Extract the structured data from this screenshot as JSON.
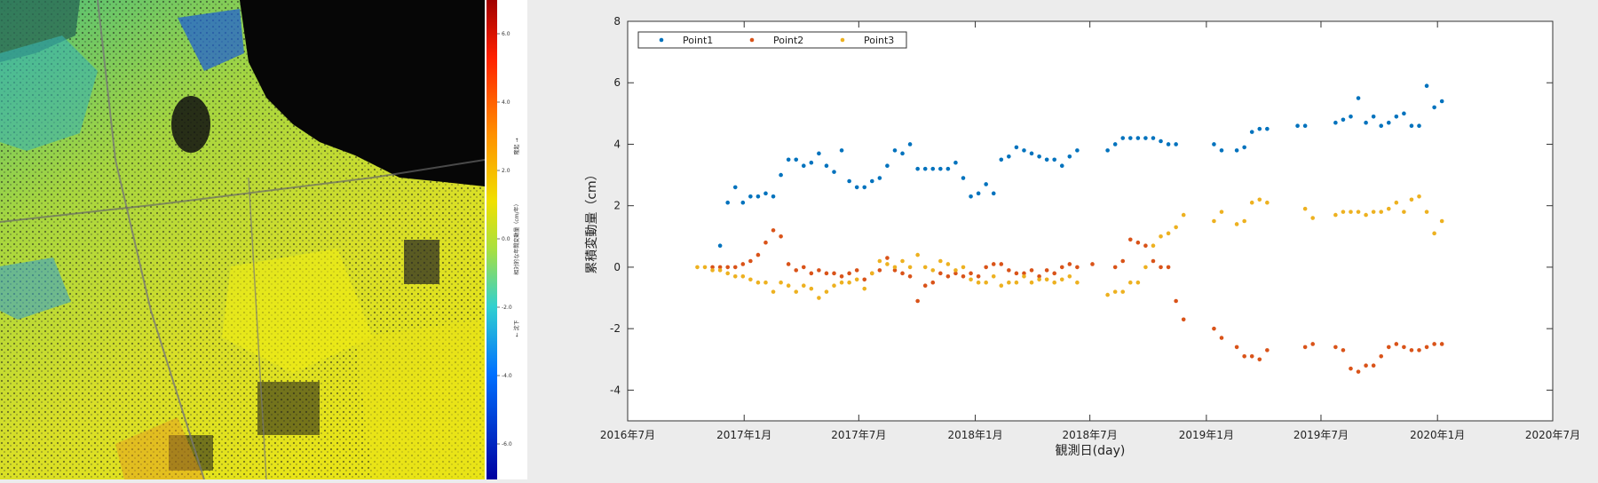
{
  "map": {
    "colorbar": {
      "ticks": [
        "6.0",
        "4.0",
        "2.0",
        "0.0",
        "-2.0",
        "-4.0",
        "-6.0"
      ],
      "title": "相対的な年間変動量（cm/年）",
      "label_up": "隆起 →",
      "label_down": "← 沈下",
      "colors": [
        "#c00000",
        "#ff3000",
        "#ff9000",
        "#f0e000",
        "#a0e040",
        "#30d0d0",
        "#0080ff",
        "#0000c0"
      ]
    }
  },
  "chart_data": {
    "type": "scatter",
    "xlabel": "観測日(day)",
    "ylabel": "累積変動量（cm）",
    "ylim": [
      -5,
      8
    ],
    "yticks": [
      "-4",
      "-2",
      "0",
      "2",
      "4",
      "6",
      "8"
    ],
    "xticks": [
      "2016年7月",
      "2017年1月",
      "2017年7月",
      "2018年1月",
      "2018年7月",
      "2019年1月",
      "2019年7月",
      "2020年1月",
      "2020年7月"
    ],
    "xlim": [
      "2016-07-01",
      "2020-07-01"
    ],
    "legend": "top-left",
    "grid": false,
    "series": [
      {
        "name": "Point1",
        "color": "#0072bd",
        "points": [
          [
            "2016-11-24",
            0.7
          ],
          [
            "2016-12-06",
            2.1
          ],
          [
            "2016-12-18",
            2.6
          ],
          [
            "2016-12-30",
            2.1
          ],
          [
            "2017-01-11",
            2.3
          ],
          [
            "2017-01-23",
            2.3
          ],
          [
            "2017-02-04",
            2.4
          ],
          [
            "2017-02-16",
            2.3
          ],
          [
            "2017-02-28",
            3.0
          ],
          [
            "2017-03-12",
            3.5
          ],
          [
            "2017-03-24",
            3.5
          ],
          [
            "2017-04-05",
            3.3
          ],
          [
            "2017-04-17",
            3.4
          ],
          [
            "2017-04-29",
            3.7
          ],
          [
            "2017-05-11",
            3.3
          ],
          [
            "2017-05-23",
            3.1
          ],
          [
            "2017-06-04",
            3.8
          ],
          [
            "2017-06-16",
            2.8
          ],
          [
            "2017-06-28",
            2.6
          ],
          [
            "2017-07-10",
            2.6
          ],
          [
            "2017-07-22",
            2.8
          ],
          [
            "2017-08-03",
            2.9
          ],
          [
            "2017-08-15",
            3.3
          ],
          [
            "2017-08-27",
            3.8
          ],
          [
            "2017-09-08",
            3.7
          ],
          [
            "2017-09-20",
            4.0
          ],
          [
            "2017-10-02",
            3.2
          ],
          [
            "2017-10-14",
            3.2
          ],
          [
            "2017-10-26",
            3.2
          ],
          [
            "2017-11-07",
            3.2
          ],
          [
            "2017-11-19",
            3.2
          ],
          [
            "2017-12-01",
            3.4
          ],
          [
            "2017-12-13",
            2.9
          ],
          [
            "2017-12-25",
            2.3
          ],
          [
            "2018-01-06",
            2.4
          ],
          [
            "2018-01-18",
            2.7
          ],
          [
            "2018-01-30",
            2.4
          ],
          [
            "2018-02-11",
            3.5
          ],
          [
            "2018-02-23",
            3.6
          ],
          [
            "2018-03-07",
            3.9
          ],
          [
            "2018-03-19",
            3.8
          ],
          [
            "2018-03-31",
            3.7
          ],
          [
            "2018-04-12",
            3.6
          ],
          [
            "2018-04-24",
            3.5
          ],
          [
            "2018-05-06",
            3.5
          ],
          [
            "2018-05-18",
            3.3
          ],
          [
            "2018-05-30",
            3.6
          ],
          [
            "2018-06-11",
            3.8
          ],
          [
            "2018-07-29",
            3.8
          ],
          [
            "2018-08-10",
            4.0
          ],
          [
            "2018-08-22",
            4.2
          ],
          [
            "2018-09-03",
            4.2
          ],
          [
            "2018-09-15",
            4.2
          ],
          [
            "2018-09-27",
            4.2
          ],
          [
            "2018-10-09",
            4.2
          ],
          [
            "2018-10-21",
            4.1
          ],
          [
            "2018-11-02",
            4.0
          ],
          [
            "2018-11-14",
            4.0
          ],
          [
            "2019-01-13",
            4.0
          ],
          [
            "2019-01-25",
            3.8
          ],
          [
            "2019-02-18",
            3.8
          ],
          [
            "2019-03-02",
            3.9
          ],
          [
            "2019-03-14",
            4.4
          ],
          [
            "2019-03-26",
            4.5
          ],
          [
            "2019-04-07",
            4.5
          ],
          [
            "2019-05-25",
            4.6
          ],
          [
            "2019-06-06",
            4.6
          ],
          [
            "2019-07-24",
            4.7
          ],
          [
            "2019-08-05",
            4.8
          ],
          [
            "2019-08-17",
            4.9
          ],
          [
            "2019-08-29",
            5.5
          ],
          [
            "2019-09-10",
            4.7
          ],
          [
            "2019-09-22",
            4.9
          ],
          [
            "2019-10-04",
            4.6
          ],
          [
            "2019-10-16",
            4.7
          ],
          [
            "2019-10-28",
            4.9
          ],
          [
            "2019-11-09",
            5.0
          ],
          [
            "2019-11-21",
            4.6
          ],
          [
            "2019-12-03",
            4.6
          ],
          [
            "2019-12-15",
            5.9
          ],
          [
            "2019-12-27",
            5.2
          ],
          [
            "2020-01-08",
            5.4
          ]
        ]
      },
      {
        "name": "Point2",
        "color": "#d95319",
        "points": [
          [
            "2016-11-12",
            0.0
          ],
          [
            "2016-11-24",
            0.0
          ],
          [
            "2016-12-06",
            0.0
          ],
          [
            "2016-12-18",
            0.0
          ],
          [
            "2016-12-30",
            0.1
          ],
          [
            "2017-01-11",
            0.2
          ],
          [
            "2017-01-23",
            0.4
          ],
          [
            "2017-02-04",
            0.8
          ],
          [
            "2017-02-16",
            1.2
          ],
          [
            "2017-02-28",
            1.0
          ],
          [
            "2017-03-12",
            0.1
          ],
          [
            "2017-03-24",
            -0.1
          ],
          [
            "2017-04-05",
            0.0
          ],
          [
            "2017-04-17",
            -0.2
          ],
          [
            "2017-04-29",
            -0.1
          ],
          [
            "2017-05-11",
            -0.2
          ],
          [
            "2017-05-23",
            -0.2
          ],
          [
            "2017-06-04",
            -0.3
          ],
          [
            "2017-06-16",
            -0.2
          ],
          [
            "2017-06-28",
            -0.1
          ],
          [
            "2017-07-10",
            -0.4
          ],
          [
            "2017-07-22",
            -0.2
          ],
          [
            "2017-08-03",
            -0.1
          ],
          [
            "2017-08-15",
            0.3
          ],
          [
            "2017-08-27",
            -0.1
          ],
          [
            "2017-09-08",
            -0.2
          ],
          [
            "2017-09-20",
            -0.3
          ],
          [
            "2017-10-02",
            -1.1
          ],
          [
            "2017-10-14",
            -0.6
          ],
          [
            "2017-10-26",
            -0.5
          ],
          [
            "2017-11-07",
            -0.2
          ],
          [
            "2017-11-19",
            -0.3
          ],
          [
            "2017-12-01",
            -0.2
          ],
          [
            "2017-12-13",
            -0.3
          ],
          [
            "2017-12-25",
            -0.2
          ],
          [
            "2018-01-06",
            -0.3
          ],
          [
            "2018-01-18",
            0.0
          ],
          [
            "2018-01-30",
            0.1
          ],
          [
            "2018-02-11",
            0.1
          ],
          [
            "2018-02-23",
            -0.1
          ],
          [
            "2018-03-07",
            -0.2
          ],
          [
            "2018-03-19",
            -0.2
          ],
          [
            "2018-03-31",
            -0.1
          ],
          [
            "2018-04-12",
            -0.3
          ],
          [
            "2018-04-24",
            -0.1
          ],
          [
            "2018-05-06",
            -0.2
          ],
          [
            "2018-05-18",
            0.0
          ],
          [
            "2018-05-30",
            0.1
          ],
          [
            "2018-06-11",
            0.0
          ],
          [
            "2018-07-05",
            0.1
          ],
          [
            "2018-08-10",
            0.0
          ],
          [
            "2018-08-22",
            0.2
          ],
          [
            "2018-09-03",
            0.9
          ],
          [
            "2018-09-15",
            0.8
          ],
          [
            "2018-09-27",
            0.7
          ],
          [
            "2018-10-09",
            0.2
          ],
          [
            "2018-10-21",
            0.0
          ],
          [
            "2018-11-02",
            0.0
          ],
          [
            "2018-11-14",
            -1.1
          ],
          [
            "2018-11-26",
            -1.7
          ],
          [
            "2019-01-13",
            -2.0
          ],
          [
            "2019-01-25",
            -2.3
          ],
          [
            "2019-02-18",
            -2.6
          ],
          [
            "2019-03-02",
            -2.9
          ],
          [
            "2019-03-14",
            -2.9
          ],
          [
            "2019-03-26",
            -3.0
          ],
          [
            "2019-04-07",
            -2.7
          ],
          [
            "2019-06-06",
            -2.6
          ],
          [
            "2019-06-18",
            -2.5
          ],
          [
            "2019-07-24",
            -2.6
          ],
          [
            "2019-08-05",
            -2.7
          ],
          [
            "2019-08-17",
            -3.3
          ],
          [
            "2019-08-29",
            -3.4
          ],
          [
            "2019-09-10",
            -3.2
          ],
          [
            "2019-09-22",
            -3.2
          ],
          [
            "2019-10-04",
            -2.9
          ],
          [
            "2019-10-16",
            -2.6
          ],
          [
            "2019-10-28",
            -2.5
          ],
          [
            "2019-11-09",
            -2.6
          ],
          [
            "2019-11-21",
            -2.7
          ],
          [
            "2019-12-03",
            -2.7
          ],
          [
            "2019-12-15",
            -2.6
          ],
          [
            "2019-12-27",
            -2.5
          ],
          [
            "2020-01-08",
            -2.5
          ]
        ]
      },
      {
        "name": "Point3",
        "color": "#edb120",
        "points": [
          [
            "2016-10-19",
            0.0
          ],
          [
            "2016-10-31",
            0.0
          ],
          [
            "2016-11-12",
            -0.1
          ],
          [
            "2016-11-24",
            -0.1
          ],
          [
            "2016-12-06",
            -0.2
          ],
          [
            "2016-12-18",
            -0.3
          ],
          [
            "2016-12-30",
            -0.3
          ],
          [
            "2017-01-11",
            -0.4
          ],
          [
            "2017-01-23",
            -0.5
          ],
          [
            "2017-02-04",
            -0.5
          ],
          [
            "2017-02-16",
            -0.8
          ],
          [
            "2017-02-28",
            -0.5
          ],
          [
            "2017-03-12",
            -0.6
          ],
          [
            "2017-03-24",
            -0.8
          ],
          [
            "2017-04-05",
            -0.6
          ],
          [
            "2017-04-17",
            -0.7
          ],
          [
            "2017-04-29",
            -1.0
          ],
          [
            "2017-05-11",
            -0.8
          ],
          [
            "2017-05-23",
            -0.6
          ],
          [
            "2017-06-04",
            -0.5
          ],
          [
            "2017-06-16",
            -0.5
          ],
          [
            "2017-06-28",
            -0.4
          ],
          [
            "2017-07-10",
            -0.7
          ],
          [
            "2017-07-22",
            -0.2
          ],
          [
            "2017-08-03",
            0.2
          ],
          [
            "2017-08-15",
            0.1
          ],
          [
            "2017-08-27",
            0.0
          ],
          [
            "2017-09-08",
            0.2
          ],
          [
            "2017-09-20",
            0.0
          ],
          [
            "2017-10-02",
            0.4
          ],
          [
            "2017-10-14",
            0.0
          ],
          [
            "2017-10-26",
            -0.1
          ],
          [
            "2017-11-07",
            0.2
          ],
          [
            "2017-11-19",
            0.1
          ],
          [
            "2017-12-01",
            -0.1
          ],
          [
            "2017-12-13",
            0.0
          ],
          [
            "2017-12-25",
            -0.4
          ],
          [
            "2018-01-06",
            -0.5
          ],
          [
            "2018-01-18",
            -0.5
          ],
          [
            "2018-01-30",
            -0.3
          ],
          [
            "2018-02-11",
            -0.6
          ],
          [
            "2018-02-23",
            -0.5
          ],
          [
            "2018-03-07",
            -0.5
          ],
          [
            "2018-03-19",
            -0.3
          ],
          [
            "2018-03-31",
            -0.5
          ],
          [
            "2018-04-12",
            -0.4
          ],
          [
            "2018-04-24",
            -0.4
          ],
          [
            "2018-05-06",
            -0.5
          ],
          [
            "2018-05-18",
            -0.4
          ],
          [
            "2018-05-30",
            -0.3
          ],
          [
            "2018-06-11",
            -0.5
          ],
          [
            "2018-07-29",
            -0.9
          ],
          [
            "2018-08-10",
            -0.8
          ],
          [
            "2018-08-22",
            -0.8
          ],
          [
            "2018-09-03",
            -0.5
          ],
          [
            "2018-09-15",
            -0.5
          ],
          [
            "2018-09-27",
            0.0
          ],
          [
            "2018-10-09",
            0.7
          ],
          [
            "2018-10-21",
            1.0
          ],
          [
            "2018-11-02",
            1.1
          ],
          [
            "2018-11-14",
            1.3
          ],
          [
            "2018-11-26",
            1.7
          ],
          [
            "2019-01-13",
            1.5
          ],
          [
            "2019-01-25",
            1.8
          ],
          [
            "2019-02-18",
            1.4
          ],
          [
            "2019-03-02",
            1.5
          ],
          [
            "2019-03-14",
            2.1
          ],
          [
            "2019-03-26",
            2.2
          ],
          [
            "2019-04-07",
            2.1
          ],
          [
            "2019-06-06",
            1.9
          ],
          [
            "2019-06-18",
            1.6
          ],
          [
            "2019-07-24",
            1.7
          ],
          [
            "2019-08-05",
            1.8
          ],
          [
            "2019-08-17",
            1.8
          ],
          [
            "2019-08-29",
            1.8
          ],
          [
            "2019-09-10",
            1.7
          ],
          [
            "2019-09-22",
            1.8
          ],
          [
            "2019-10-04",
            1.8
          ],
          [
            "2019-10-16",
            1.9
          ],
          [
            "2019-10-28",
            2.1
          ],
          [
            "2019-11-09",
            1.8
          ],
          [
            "2019-11-21",
            2.2
          ],
          [
            "2019-12-03",
            2.3
          ],
          [
            "2019-12-15",
            1.8
          ],
          [
            "2019-12-27",
            1.1
          ],
          [
            "2020-01-08",
            1.5
          ]
        ]
      }
    ]
  }
}
